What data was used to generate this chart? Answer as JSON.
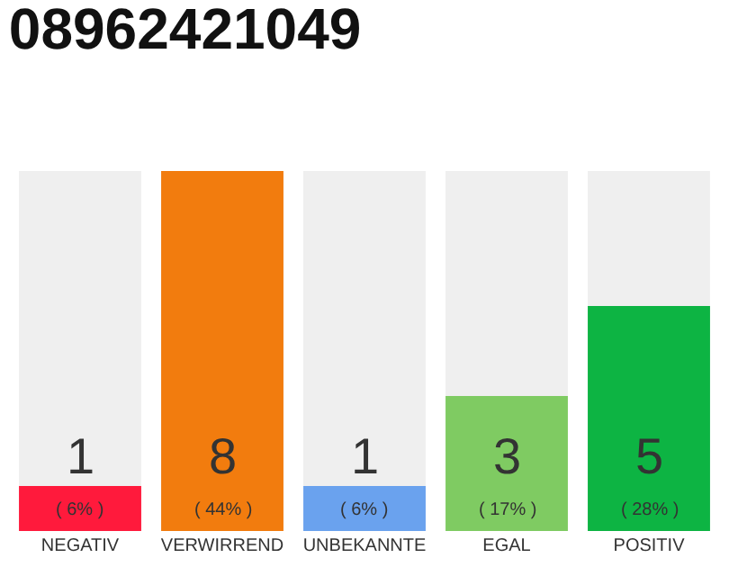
{
  "chart_data": {
    "type": "bar",
    "title": "08962421049",
    "categories": [
      "NEGATIV",
      "VERWIRREND",
      "UNBEKANNTE",
      "EGAL",
      "POSITIV"
    ],
    "values": [
      1,
      8,
      1,
      3,
      5
    ],
    "colors": [
      "#ff1a3c",
      "#f27c0e",
      "#6aa2ee",
      "#7fcb62",
      "#0db443"
    ],
    "data_labels": true,
    "annotations": [
      "( 6% )",
      "( 44% )",
      "( 6% )",
      "( 17% )",
      "( 28% )"
    ],
    "grid": false,
    "legend": false
  }
}
